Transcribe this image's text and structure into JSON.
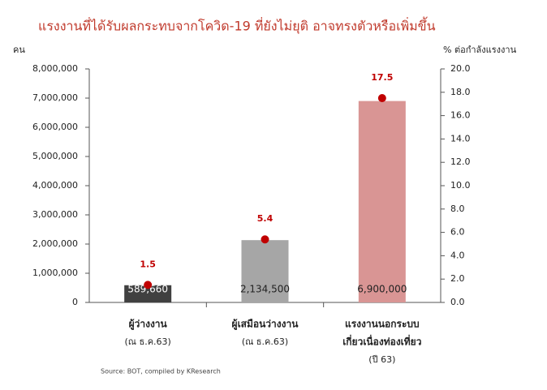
{
  "chart_data": {
    "type": "bar",
    "title": "แรงงานที่ได้รับผลกระทบจากโควิด-19 ที่ยังไม่ยุติ อาจทรงตัวหรือเพิ่มขึ้น",
    "y_label": "คน",
    "y2_label": "% ต่อกำลังแรงงาน",
    "categories": [
      [
        "ผู้ว่างงาน",
        "(ณ ธ.ค.63)"
      ],
      [
        "ผู้เสมือนว่างงาน",
        "(ณ ธ.ค.63)"
      ],
      [
        "แรงงานนอกระบบ",
        "เกี่ยวเนื่องท่องเที่ยว",
        "(ปี 63)"
      ]
    ],
    "series": [
      {
        "kind": "bar",
        "colors": [
          "#404040",
          "#a6a6a6",
          "#d99594"
        ],
        "values": [
          589660,
          2134500,
          6900000
        ],
        "value_labels": [
          "589,660",
          "2,134,500",
          "6,900,000"
        ]
      },
      {
        "kind": "dot",
        "axis": "y2",
        "color": "#c00000",
        "values": [
          1.5,
          5.4,
          17.5
        ]
      }
    ],
    "ylim": [
      0,
      8000000
    ],
    "yticks": [
      0,
      {
        "value": 1000000,
        "label": "1,000,000"
      },
      {
        "value": 2000000,
        "label": "2,000,000"
      },
      {
        "value": 3000000,
        "label": "3,000,000"
      },
      {
        "value": 4000000,
        "label": "4,000,000"
      },
      {
        "value": 5000000,
        "label": "5,000,000"
      },
      {
        "value": 6000000,
        "label": "6,000,000"
      },
      {
        "value": 7000000,
        "label": "7,000,000"
      },
      {
        "value": 8000000,
        "label": "8,000,000"
      }
    ],
    "y2lim": [
      0,
      20
    ],
    "y2ticks": [
      {
        "value": 0,
        "label": "0.0"
      },
      {
        "value": 2,
        "label": "2.0"
      },
      {
        "value": 4,
        "label": "4.0"
      },
      {
        "value": 6,
        "label": "6.0"
      },
      {
        "value": 8,
        "label": "8.0"
      },
      {
        "value": 10,
        "label": "10.0"
      },
      {
        "value": 12,
        "label": "12.0"
      },
      {
        "value": 14,
        "label": "14.0"
      },
      {
        "value": 16,
        "label": "16.0"
      },
      {
        "value": 18,
        "label": "18.0"
      },
      {
        "value": 20,
        "label": "20.0"
      }
    ],
    "source": "Source: BOT, compiled by KResearch"
  }
}
